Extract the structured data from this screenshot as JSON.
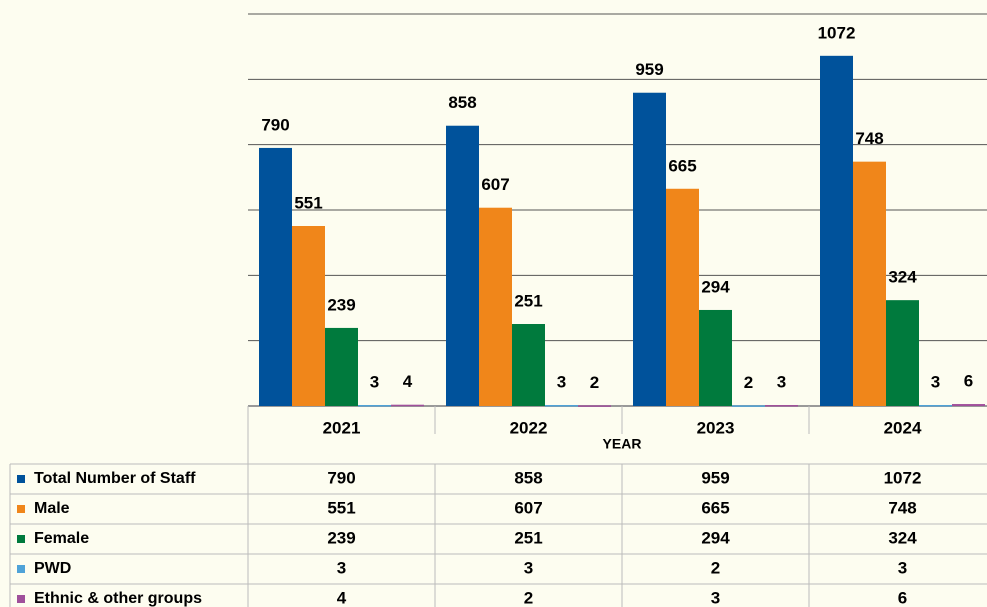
{
  "chart_data": {
    "type": "bar",
    "categories": [
      "2021",
      "2022",
      "2023",
      "2024"
    ],
    "x_label": "YEAR",
    "series": [
      {
        "name": "Total Number of Staff",
        "color": "#00529b",
        "values": [
          790,
          858,
          959,
          1072
        ]
      },
      {
        "name": "Male",
        "color": "#f0861a",
        "values": [
          551,
          607,
          665,
          748
        ]
      },
      {
        "name": "Female",
        "color": "#007a3d",
        "values": [
          239,
          251,
          294,
          324
        ]
      },
      {
        "name": "PWD",
        "color": "#4fa3d8",
        "values": [
          3,
          3,
          2,
          3
        ]
      },
      {
        "name": "Ethnic & other groups",
        "color": "#a0509b",
        "values": [
          4,
          2,
          3,
          6
        ]
      }
    ],
    "ylim": [
      0,
      1200
    ],
    "yticks": [
      0,
      200,
      400,
      600,
      800,
      1000,
      1200
    ],
    "grid": true
  }
}
